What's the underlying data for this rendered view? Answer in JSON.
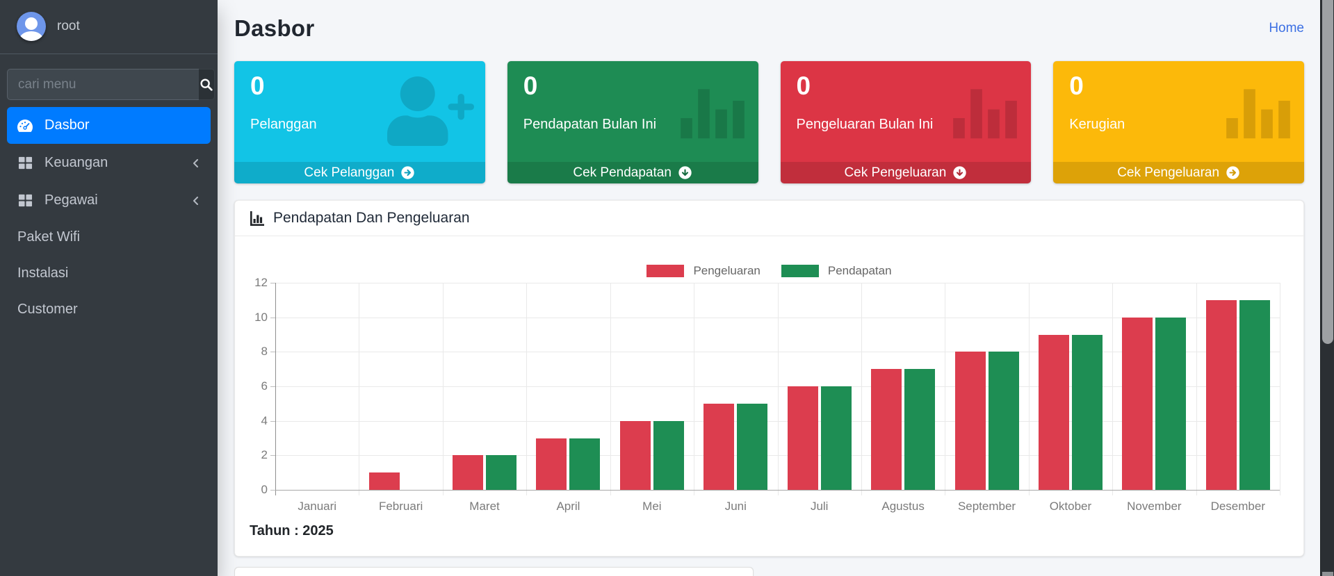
{
  "sidebar": {
    "user": {
      "name": "root"
    },
    "search": {
      "placeholder": "cari menu"
    },
    "menu": [
      {
        "label": "Dasbor",
        "icon": "tachometer-icon",
        "active": true,
        "chevron": false
      },
      {
        "label": "Keuangan",
        "icon": "table-icon",
        "active": false,
        "chevron": true
      },
      {
        "label": "Pegawai",
        "icon": "table-icon",
        "active": false,
        "chevron": true
      },
      {
        "label": "Paket Wifi",
        "icon": null,
        "active": false,
        "chevron": false
      },
      {
        "label": "Instalasi",
        "icon": null,
        "active": false,
        "chevron": false
      },
      {
        "label": "Customer",
        "icon": null,
        "active": false,
        "chevron": false
      }
    ]
  },
  "header": {
    "title": "Dasbor",
    "breadcrumb": "Home"
  },
  "infoboxes": {
    "items": [
      {
        "value": "0",
        "label": "Pelanggan",
        "icon": "user-plus-icon",
        "footer_label": "Cek Pelanggan",
        "footer_icon": "arrow-circle-right-icon",
        "arrow_dir": "right",
        "color": "#12c4e6",
        "arrow_color": "#0e9fbd"
      },
      {
        "value": "0",
        "label": "Pendapatan Bulan Ini",
        "icon": "stats-bars-icon",
        "footer_label": "Cek Pendapatan",
        "footer_icon": "arrow-circle-down-icon",
        "arrow_dir": "down",
        "color": "#1e8c54",
        "arrow_color": "#166c40"
      },
      {
        "value": "0",
        "label": "Pengeluaran Bulan Ini",
        "icon": "stats-bars-icon",
        "footer_label": "Cek Pengeluaran",
        "footer_icon": "arrow-circle-down-icon",
        "arrow_dir": "down",
        "color": "#dc3545",
        "arrow_color": "#b02a37"
      },
      {
        "value": "0",
        "label": "Kerugian",
        "icon": "stats-bars-icon",
        "footer_label": "Cek Pengeluaran",
        "footer_icon": "arrow-circle-right-icon",
        "arrow_dir": "right",
        "color": "#fcb90a",
        "arrow_color": "#d19a05"
      }
    ]
  },
  "chart_card": {
    "title": "Pendapatan Dan Pengeluaran",
    "year_label": "Tahun : 2025"
  },
  "chart_data": {
    "type": "bar",
    "title": "Pendapatan Dan Pengeluaran",
    "categories": [
      "Januari",
      "Februari",
      "Maret",
      "April",
      "Mei",
      "Juni",
      "Juli",
      "Agustus",
      "September",
      "Oktober",
      "November",
      "Desember"
    ],
    "series": [
      {
        "name": "Pengeluaran",
        "color": "#dc3d4e",
        "values": [
          0,
          1,
          2,
          3,
          4,
          5,
          6,
          7,
          8,
          9,
          10,
          11
        ]
      },
      {
        "name": "Pendapatan",
        "color": "#1e8e54",
        "values": [
          0,
          0,
          2,
          3,
          4,
          5,
          6,
          7,
          8,
          9,
          10,
          11
        ]
      }
    ],
    "xlabel": "",
    "ylabel": "",
    "ylim": [
      0,
      12
    ],
    "ytick_step": 2,
    "grid": true,
    "legend_position": "top"
  }
}
